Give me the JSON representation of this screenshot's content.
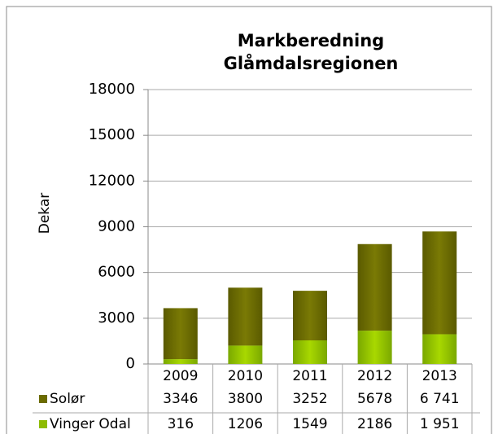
{
  "chart_data": {
    "type": "stacked_bar",
    "title": "Markberedning\nGlåmdalsregionen",
    "y_label": "Dekar",
    "categories": [
      "2009",
      "2010",
      "2011",
      "2012",
      "2013"
    ],
    "series": [
      {
        "name": "Vinger Odal",
        "color": "#8dbb00",
        "values": [
          316,
          1206,
          1549,
          2186,
          1951
        ],
        "value_labels": [
          "316",
          "1206",
          "1549",
          "2186",
          "1 951"
        ]
      },
      {
        "name": "Solør",
        "color": "#6b6b00",
        "values": [
          3346,
          3800,
          3252,
          5678,
          6741
        ],
        "value_labels": [
          "3346",
          "3800",
          "3252",
          "5678",
          "6 741"
        ]
      }
    ],
    "table_order": [
      1,
      0
    ],
    "ylim": [
      0,
      18000
    ],
    "yticks": [
      0,
      3000,
      6000,
      9000,
      12000,
      15000,
      18000
    ],
    "grid": true
  }
}
